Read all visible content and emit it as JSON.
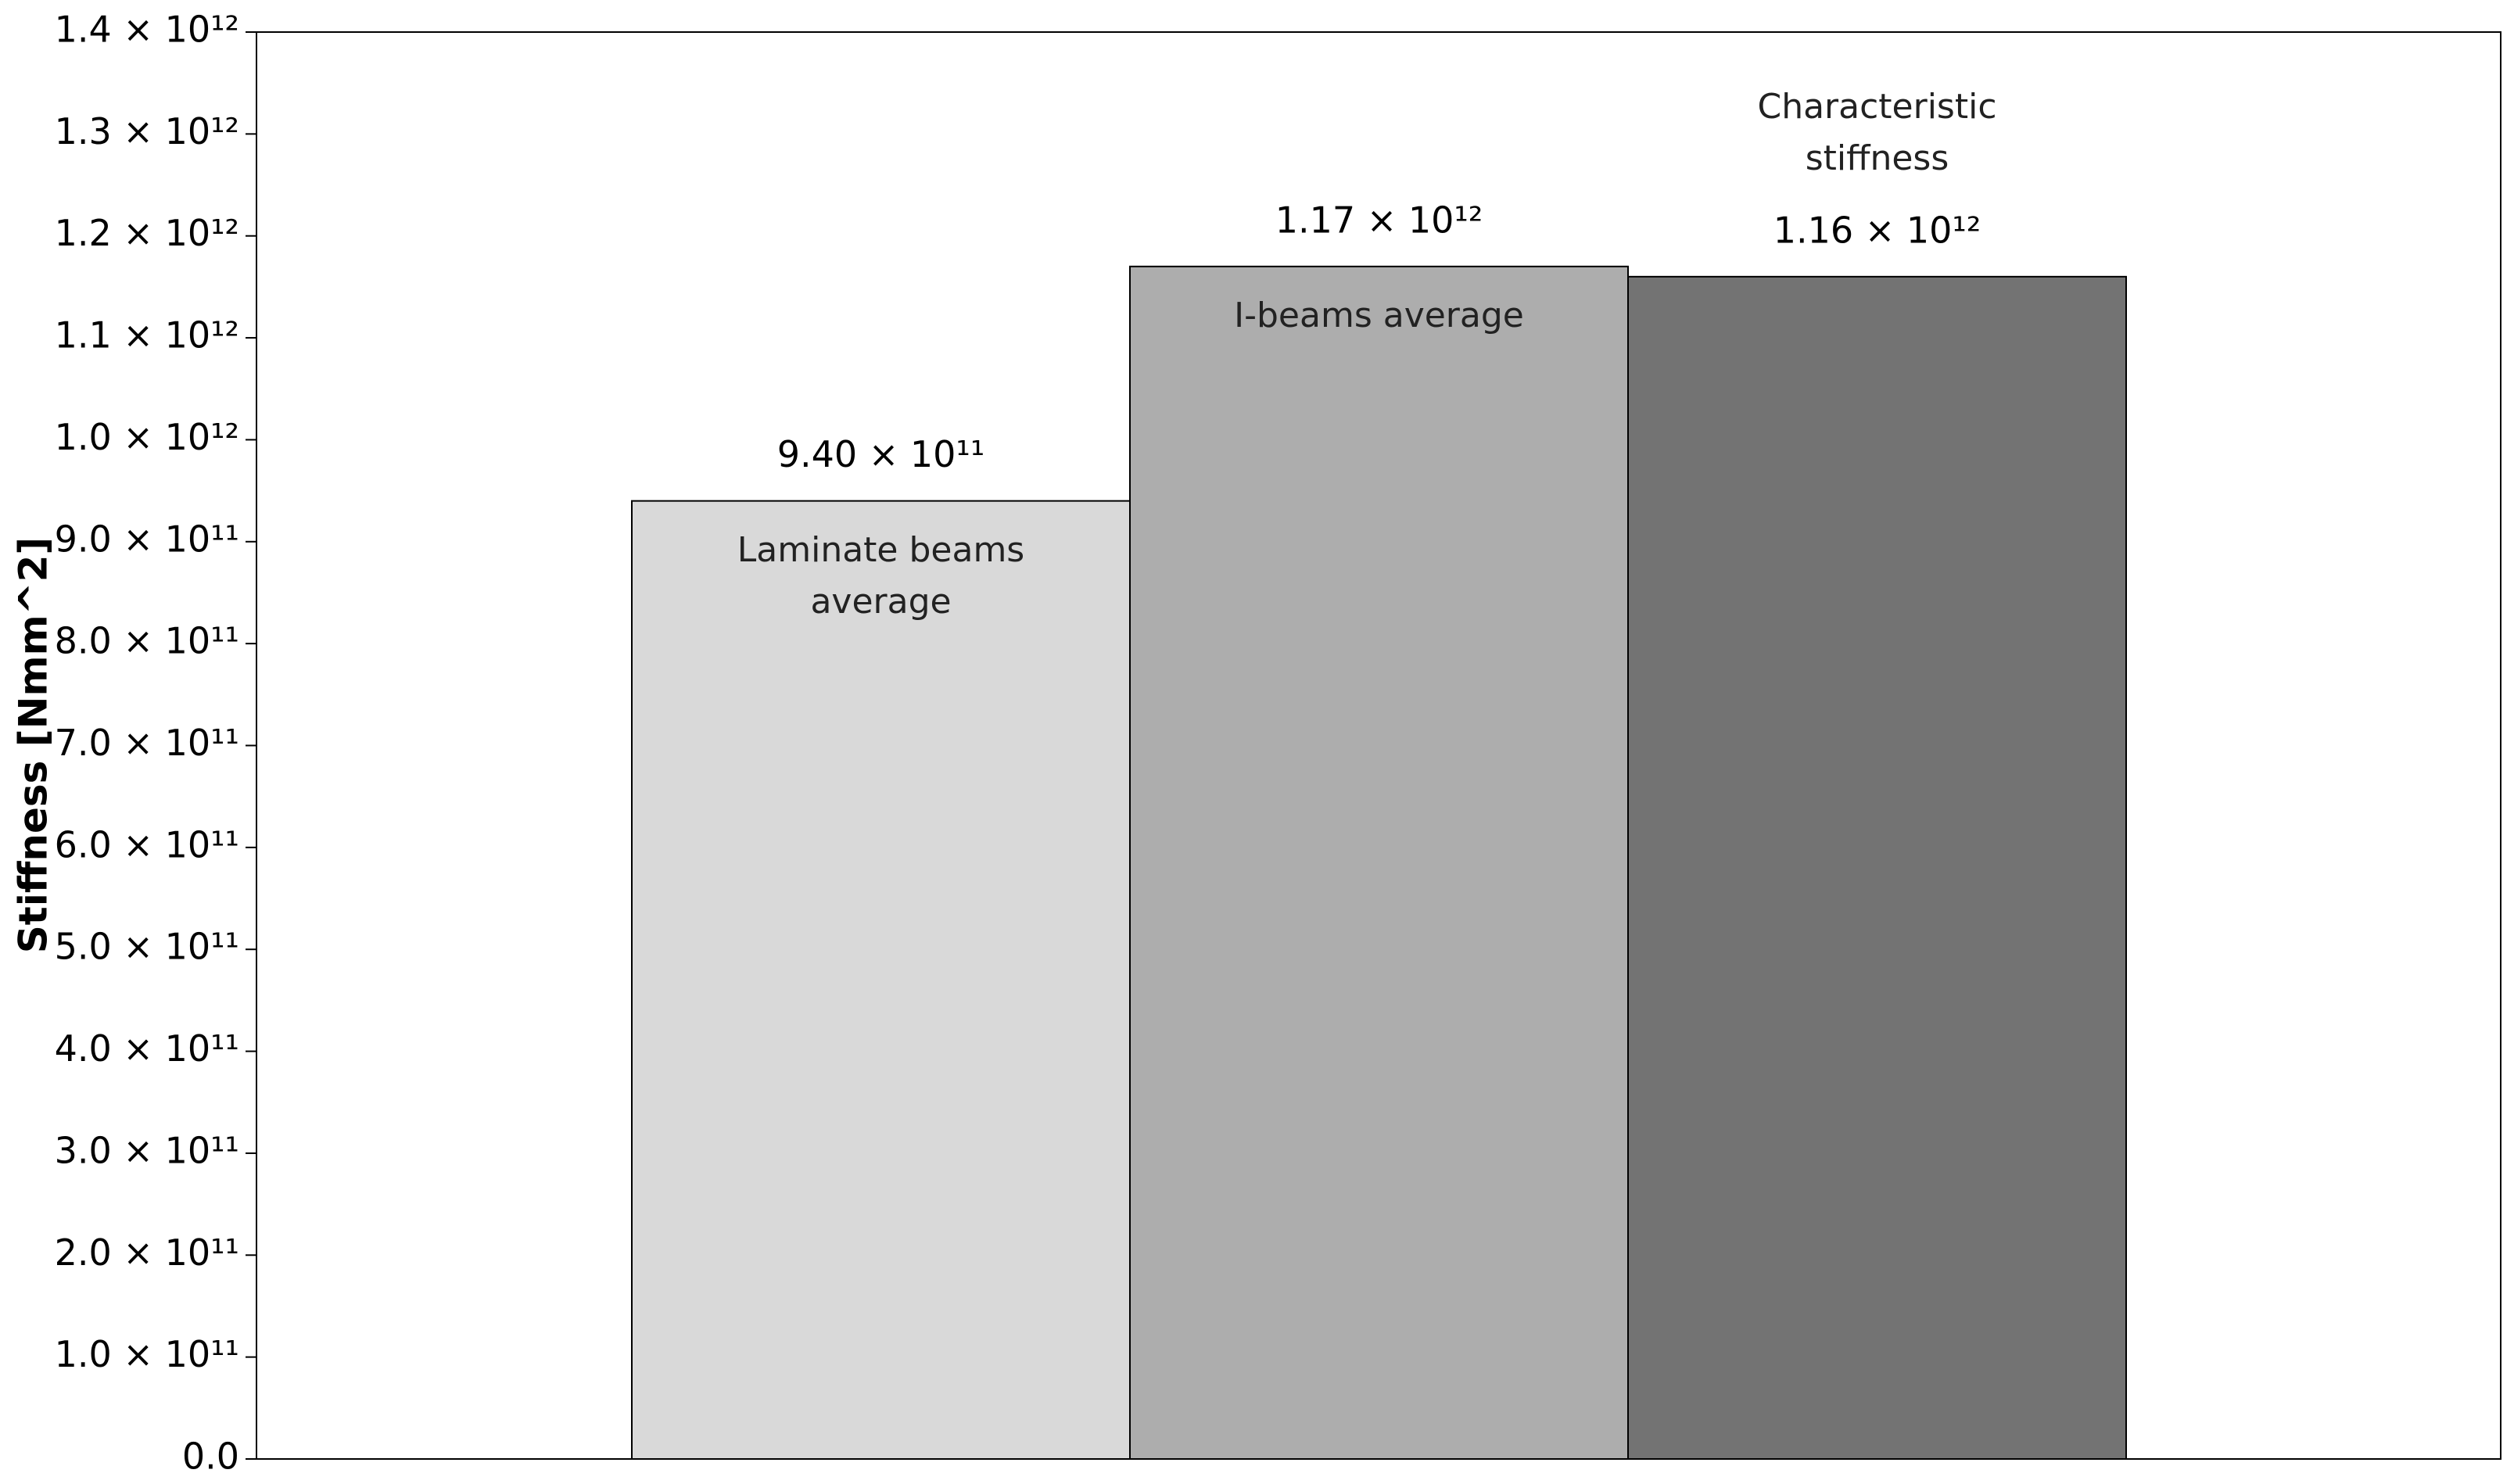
{
  "chart_data": {
    "type": "bar",
    "y_label": "Stiffness [Nmm^2]",
    "categories": [
      "Laminate beams average",
      "I-beams average",
      "Characteristic stiffness"
    ],
    "values": [
      940000000000,
      1170000000000,
      1160000000000
    ],
    "value_labels": [
      "9.40 × 10¹¹",
      "1.17 × 10¹²",
      "1.16 × 10¹²"
    ],
    "colors": [
      "#d9d9d9",
      "#adadad",
      "#737373"
    ],
    "ylim": [
      0,
      1400000000000
    ],
    "yticks": [
      {
        "value": 0,
        "label": "0.0"
      },
      {
        "value": 100000000000,
        "label": "1.0 × 10¹¹"
      },
      {
        "value": 200000000000,
        "label": "2.0 × 10¹¹"
      },
      {
        "value": 300000000000,
        "label": "3.0 × 10¹¹"
      },
      {
        "value": 400000000000,
        "label": "4.0 × 10¹¹"
      },
      {
        "value": 500000000000,
        "label": "5.0 × 10¹¹"
      },
      {
        "value": 600000000000,
        "label": "6.0 × 10¹¹"
      },
      {
        "value": 700000000000,
        "label": "7.0 × 10¹¹"
      },
      {
        "value": 800000000000,
        "label": "8.0 × 10¹¹"
      },
      {
        "value": 900000000000,
        "label": "9.0 × 10¹¹"
      },
      {
        "value": 1000000000000,
        "label": "1.0 × 10¹²"
      },
      {
        "value": 1100000000000,
        "label": "1.1 × 10¹²"
      },
      {
        "value": 1200000000000,
        "label": "1.2 × 10¹²"
      },
      {
        "value": 1300000000000,
        "label": "1.3 × 10¹²"
      },
      {
        "value": 1400000000000,
        "label": "1.4 × 10¹²"
      }
    ],
    "grid": false
  }
}
